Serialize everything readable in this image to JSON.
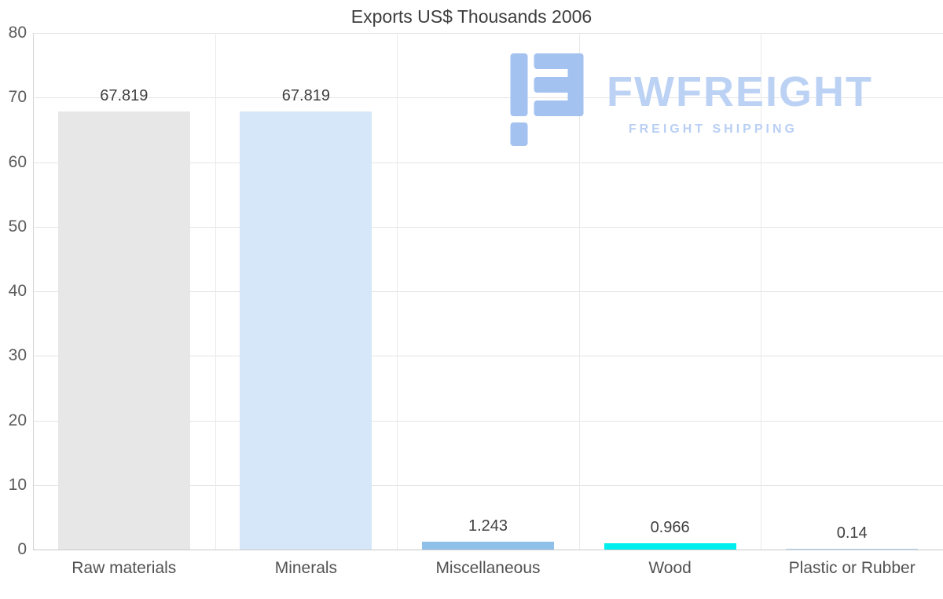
{
  "title": "Exports US$ Thousands 2006",
  "logo": {
    "name": "FWFREIGHT",
    "tagline": "FREIGHT SHIPPING",
    "icon": "fwfreight-logo-icon",
    "icon_color": "#a3c2f0",
    "text_color": "#bcd2f5"
  },
  "chart_data": {
    "type": "bar",
    "title": "Exports US$ Thousands 2006",
    "categories": [
      "Raw materials",
      "Minerals",
      "Miscellaneous",
      "Wood",
      "Plastic or Rubber"
    ],
    "values": [
      67.819,
      67.819,
      1.243,
      0.966,
      0.14
    ],
    "value_labels": [
      "67.819",
      "67.819",
      "1.243",
      "0.966",
      "0.14"
    ],
    "bar_colors": [
      "#e7e7e7",
      "#d5e7f8",
      "#8fc0e9",
      "#00eeee",
      "#aed6f2"
    ],
    "xlabel": "",
    "ylabel": "",
    "ylim": [
      0,
      80
    ],
    "yticks": [
      0,
      10,
      20,
      30,
      40,
      50,
      60,
      70,
      80
    ],
    "grid": true,
    "legend": false
  }
}
